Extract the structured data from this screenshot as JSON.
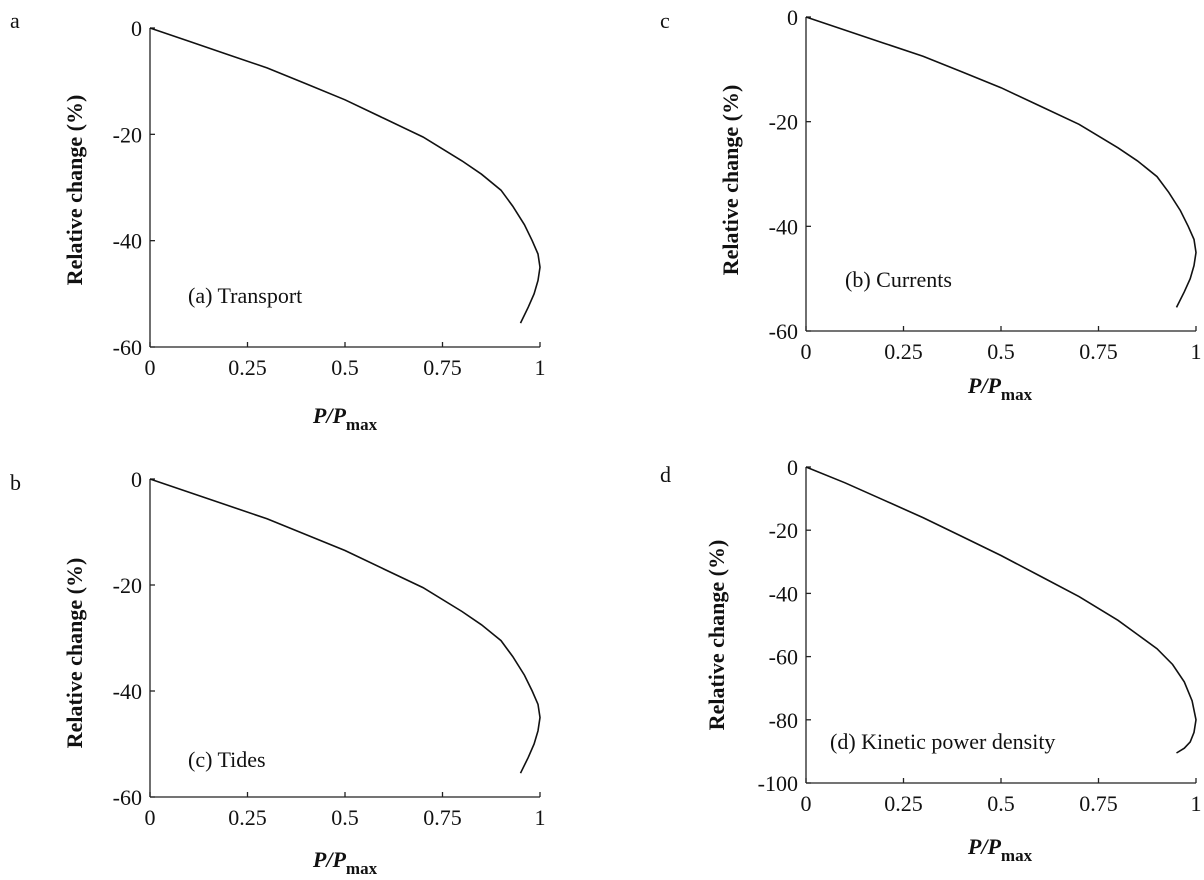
{
  "chart_data": [
    {
      "type": "line",
      "panel_letter": "a",
      "annotation": "(a) Transport",
      "xlabel_main": "P/P",
      "xlabel_sub": "max",
      "ylabel": "Relative change (%)",
      "xlim": [
        0,
        1
      ],
      "ylim": [
        -60,
        0
      ],
      "xticks": [
        0,
        0.25,
        0.5,
        0.75,
        1
      ],
      "xtick_labels": [
        "0",
        "0.25",
        "0.5",
        "0.75",
        "1"
      ],
      "yticks": [
        0,
        -20,
        -40,
        -60
      ],
      "ytick_labels": [
        "0",
        "-20",
        "-40",
        "-60"
      ],
      "grid": false,
      "series": [
        {
          "x": [
            0,
            0.1,
            0.2,
            0.3,
            0.4,
            0.5,
            0.6,
            0.7,
            0.8,
            0.85,
            0.9,
            0.93,
            0.96,
            0.98,
            0.995,
            1.0,
            0.995,
            0.985,
            0.97,
            0.95
          ],
          "y": [
            0,
            -2.5,
            -5,
            -7.5,
            -10.5,
            -13.5,
            -17,
            -20.5,
            -25,
            -27.5,
            -30.5,
            -33.5,
            -37,
            -40,
            -42.5,
            -45,
            -47.5,
            -50,
            -52.5,
            -55.5
          ]
        }
      ]
    },
    {
      "type": "line",
      "panel_letter": "c",
      "annotation": "(b) Currents",
      "xlabel_main": "P/P",
      "xlabel_sub": "max",
      "ylabel": "Relative change (%)",
      "xlim": [
        0,
        1
      ],
      "ylim": [
        -60,
        0
      ],
      "xticks": [
        0,
        0.25,
        0.5,
        0.75,
        1
      ],
      "xtick_labels": [
        "0",
        "0.25",
        "0.5",
        "0.75",
        "1"
      ],
      "yticks": [
        0,
        -20,
        -40,
        -60
      ],
      "ytick_labels": [
        "0",
        "-20",
        "-40",
        "-60"
      ],
      "grid": false,
      "series": [
        {
          "x": [
            0,
            0.1,
            0.2,
            0.3,
            0.4,
            0.5,
            0.6,
            0.7,
            0.8,
            0.85,
            0.9,
            0.93,
            0.96,
            0.98,
            0.995,
            1.0,
            0.995,
            0.985,
            0.97,
            0.95
          ],
          "y": [
            0,
            -2.5,
            -5,
            -7.5,
            -10.5,
            -13.5,
            -17,
            -20.5,
            -25,
            -27.5,
            -30.5,
            -33.5,
            -37,
            -40,
            -42.5,
            -45,
            -47.5,
            -50,
            -52.5,
            -55.5
          ]
        }
      ]
    },
    {
      "type": "line",
      "panel_letter": "b",
      "annotation": "(c) Tides",
      "xlabel_main": "P/P",
      "xlabel_sub": "max",
      "ylabel": "Relative change (%)",
      "xlim": [
        0,
        1
      ],
      "ylim": [
        -60,
        0
      ],
      "xticks": [
        0,
        0.25,
        0.5,
        0.75,
        1
      ],
      "xtick_labels": [
        "0",
        "0.25",
        "0.5",
        "0.75",
        "1"
      ],
      "yticks": [
        0,
        -20,
        -40,
        -60
      ],
      "ytick_labels": [
        "0",
        "-20",
        "-40",
        "-60"
      ],
      "grid": false,
      "series": [
        {
          "x": [
            0,
            0.1,
            0.2,
            0.3,
            0.4,
            0.5,
            0.6,
            0.7,
            0.8,
            0.85,
            0.9,
            0.93,
            0.96,
            0.98,
            0.995,
            1.0,
            0.995,
            0.985,
            0.97,
            0.95
          ],
          "y": [
            0,
            -2.5,
            -5,
            -7.5,
            -10.5,
            -13.5,
            -17,
            -20.5,
            -25,
            -27.5,
            -30.5,
            -33.5,
            -37,
            -40,
            -42.5,
            -45,
            -47.5,
            -50,
            -52.5,
            -55.5
          ]
        }
      ]
    },
    {
      "type": "line",
      "panel_letter": "d",
      "annotation": "(d) Kinetic power density",
      "xlabel_main": "P/P",
      "xlabel_sub": "max",
      "ylabel": "Relative change (%)",
      "xlim": [
        0,
        1
      ],
      "ylim": [
        -100,
        0
      ],
      "xticks": [
        0,
        0.25,
        0.5,
        0.75,
        1
      ],
      "xtick_labels": [
        "0",
        "0.25",
        "0.5",
        "0.75",
        "1"
      ],
      "yticks": [
        0,
        -20,
        -40,
        -60,
        -80,
        -100
      ],
      "ytick_labels": [
        "0",
        "-20",
        "-40",
        "-60",
        "-80",
        "-100"
      ],
      "grid": false,
      "series": [
        {
          "x": [
            0,
            0.1,
            0.2,
            0.3,
            0.4,
            0.5,
            0.6,
            0.7,
            0.8,
            0.85,
            0.9,
            0.94,
            0.97,
            0.99,
            1.0,
            0.995,
            0.985,
            0.97,
            0.95
          ],
          "y": [
            0,
            -5,
            -10.5,
            -16,
            -22,
            -28,
            -34.5,
            -41,
            -48.5,
            -53,
            -57.5,
            -62.5,
            -68,
            -74,
            -80,
            -84,
            -87,
            -89,
            -90.5
          ]
        }
      ]
    }
  ]
}
